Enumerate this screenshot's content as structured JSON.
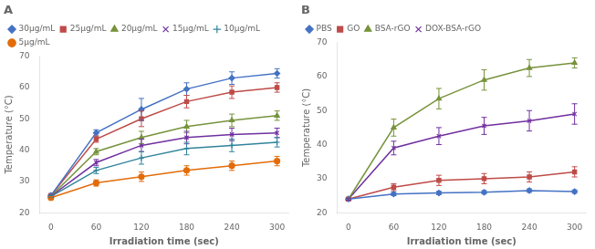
{
  "chart_data": [
    {
      "type": "line",
      "title": "A",
      "xlabel": "Irradiation time (sec)",
      "ylabel": "Temperature (°C)",
      "x": [
        0,
        60,
        120,
        180,
        240,
        300
      ],
      "xlim": [
        -15,
        315
      ],
      "xticks": [
        0,
        60,
        120,
        180,
        240,
        300
      ],
      "ylim": [
        20,
        70
      ],
      "yticks": [
        20,
        30,
        40,
        50,
        60,
        70
      ],
      "grid": false,
      "legend": "upper left",
      "series": [
        {
          "name": "30μg/mL",
          "color": "#4472C4",
          "marker": "diamond",
          "values": [
            25.5,
            45.5,
            53.0,
            59.5,
            63.0,
            64.5
          ],
          "errors": [
            0.3,
            1.0,
            3.5,
            2.0,
            2.0,
            1.5
          ]
        },
        {
          "name": "25μg/mL",
          "color": "#BE4B48",
          "marker": "square",
          "values": [
            25.5,
            43.5,
            50.0,
            55.5,
            58.5,
            60.0
          ],
          "errors": [
            0.3,
            1.0,
            2.5,
            2.0,
            2.0,
            1.5
          ]
        },
        {
          "name": "20μg/mL",
          "color": "#77933C",
          "marker": "triangle",
          "values": [
            25.3,
            39.5,
            44.0,
            47.5,
            49.5,
            51.0
          ],
          "errors": [
            0.3,
            1.0,
            2.0,
            2.0,
            2.0,
            1.5
          ]
        },
        {
          "name": "15μg/mL",
          "color": "#7030A0",
          "marker": "x",
          "values": [
            25.3,
            36.0,
            41.5,
            44.0,
            45.0,
            45.5
          ],
          "errors": [
            0.3,
            1.0,
            2.0,
            2.0,
            2.0,
            1.5
          ]
        },
        {
          "name": "10μg/mL",
          "color": "#31849B",
          "marker": "plus",
          "values": [
            25.2,
            33.5,
            37.5,
            40.5,
            41.5,
            42.5
          ],
          "errors": [
            0.3,
            1.0,
            2.0,
            2.0,
            2.0,
            1.5
          ]
        },
        {
          "name": "5μg/mL",
          "color": "#E36C09",
          "marker": "circle",
          "values": [
            24.8,
            29.5,
            31.5,
            33.5,
            35.0,
            36.5
          ],
          "errors": [
            0.3,
            1.0,
            1.5,
            1.5,
            1.5,
            1.5
          ]
        }
      ]
    },
    {
      "type": "line",
      "title": "B",
      "xlabel": "Irradiation time (sec)",
      "ylabel": "Temperature (°C)",
      "x": [
        0,
        60,
        120,
        180,
        240,
        300
      ],
      "xlim": [
        -15,
        315
      ],
      "xticks": [
        0,
        60,
        120,
        180,
        240,
        300
      ],
      "ylim": [
        20,
        70
      ],
      "yticks": [
        20,
        30,
        40,
        50,
        60,
        70
      ],
      "grid": false,
      "legend": "upper left",
      "series": [
        {
          "name": "PBS",
          "color": "#4472C4",
          "marker": "diamond",
          "values": [
            24.0,
            25.5,
            25.8,
            26.0,
            26.5,
            26.2
          ],
          "errors": [
            0.3,
            0.5,
            0.5,
            0.5,
            0.5,
            0.5
          ]
        },
        {
          "name": "GO",
          "color": "#BE4B48",
          "marker": "square",
          "values": [
            24.0,
            27.5,
            29.5,
            30.0,
            30.5,
            32.0
          ],
          "errors": [
            0.3,
            1.0,
            1.5,
            1.5,
            1.5,
            1.5
          ]
        },
        {
          "name": "BSA-rGO",
          "color": "#77933C",
          "marker": "triangle",
          "values": [
            24.0,
            45.0,
            53.5,
            59.0,
            62.5,
            64.0
          ],
          "errors": [
            0.3,
            2.5,
            3.0,
            3.0,
            2.5,
            1.5
          ]
        },
        {
          "name": "DOX-BSA-rGO",
          "color": "#7030A0",
          "marker": "x",
          "values": [
            24.0,
            39.0,
            42.5,
            45.5,
            47.0,
            49.0
          ],
          "errors": [
            0.3,
            2.0,
            2.5,
            2.5,
            3.0,
            3.0
          ]
        }
      ]
    }
  ]
}
